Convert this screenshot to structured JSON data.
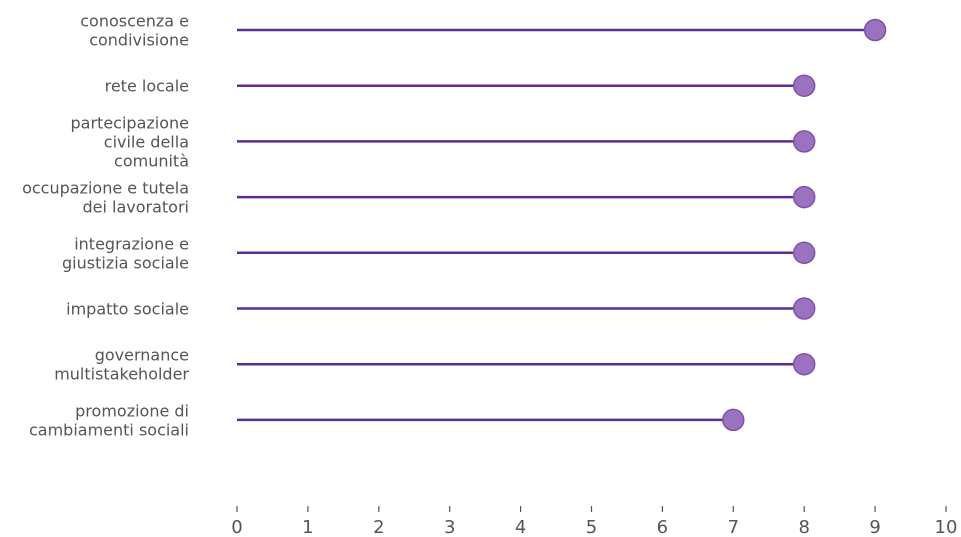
{
  "chart_data": {
    "type": "lollipop",
    "orientation": "horizontal",
    "categories": [
      [
        "conoscenza e",
        "condivisione"
      ],
      [
        "rete locale"
      ],
      [
        "partecipazione",
        "civile della",
        "comunità"
      ],
      [
        "occupazione e tutela",
        "dei lavoratori"
      ],
      [
        "integrazione e",
        "giustizia sociale"
      ],
      [
        "impatto sociale"
      ],
      [
        "governance",
        "multistakeholder"
      ],
      [
        "promozione di",
        "cambiamenti sociali"
      ]
    ],
    "values": [
      9,
      8,
      8,
      8,
      8,
      8,
      8,
      7
    ],
    "xlim": [
      0,
      10
    ],
    "xticks": [
      0,
      1,
      2,
      3,
      4,
      5,
      6,
      7,
      8,
      9,
      10
    ],
    "grid": false,
    "colors": {
      "stem": "#5c2d91",
      "marker_fill": "#9b72c0",
      "marker_stroke": "#7e52ab",
      "text": "#555555"
    }
  }
}
